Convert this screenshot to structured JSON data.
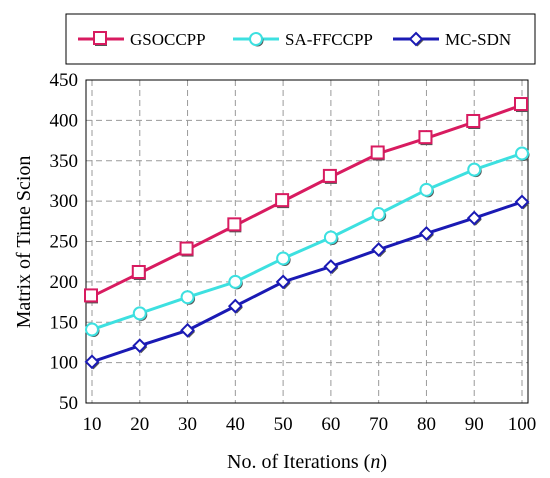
{
  "chart_data": {
    "type": "line",
    "title": "",
    "xlabel": "No. of Iterations (n)",
    "xlabel_prefix": "No. of Iterations (",
    "xlabel_var": "n",
    "xlabel_suffix": ")",
    "ylabel": "Matrix of Time Scion",
    "x": [
      10,
      20,
      30,
      40,
      50,
      60,
      70,
      80,
      90,
      100
    ],
    "xlim": [
      10,
      100
    ],
    "ylim": [
      50,
      450
    ],
    "yticks": [
      50,
      100,
      150,
      200,
      250,
      300,
      350,
      400,
      450
    ],
    "grid": true,
    "legend_position": "top",
    "series": [
      {
        "name": "GSOCCPP",
        "color": "#d81b60",
        "marker": "square",
        "values": [
          182,
          211,
          240,
          270,
          300,
          330,
          359,
          378,
          398,
          419
        ]
      },
      {
        "name": "SA-FFCCPP",
        "color": "#3de0e0",
        "marker": "circle",
        "values": [
          141,
          161,
          181,
          200,
          229,
          255,
          284,
          314,
          339,
          359
        ]
      },
      {
        "name": "MC-SDN",
        "color": "#1a1ab4",
        "marker": "diamond",
        "values": [
          101,
          121,
          140,
          170,
          200,
          219,
          240,
          260,
          279,
          299
        ]
      }
    ]
  }
}
